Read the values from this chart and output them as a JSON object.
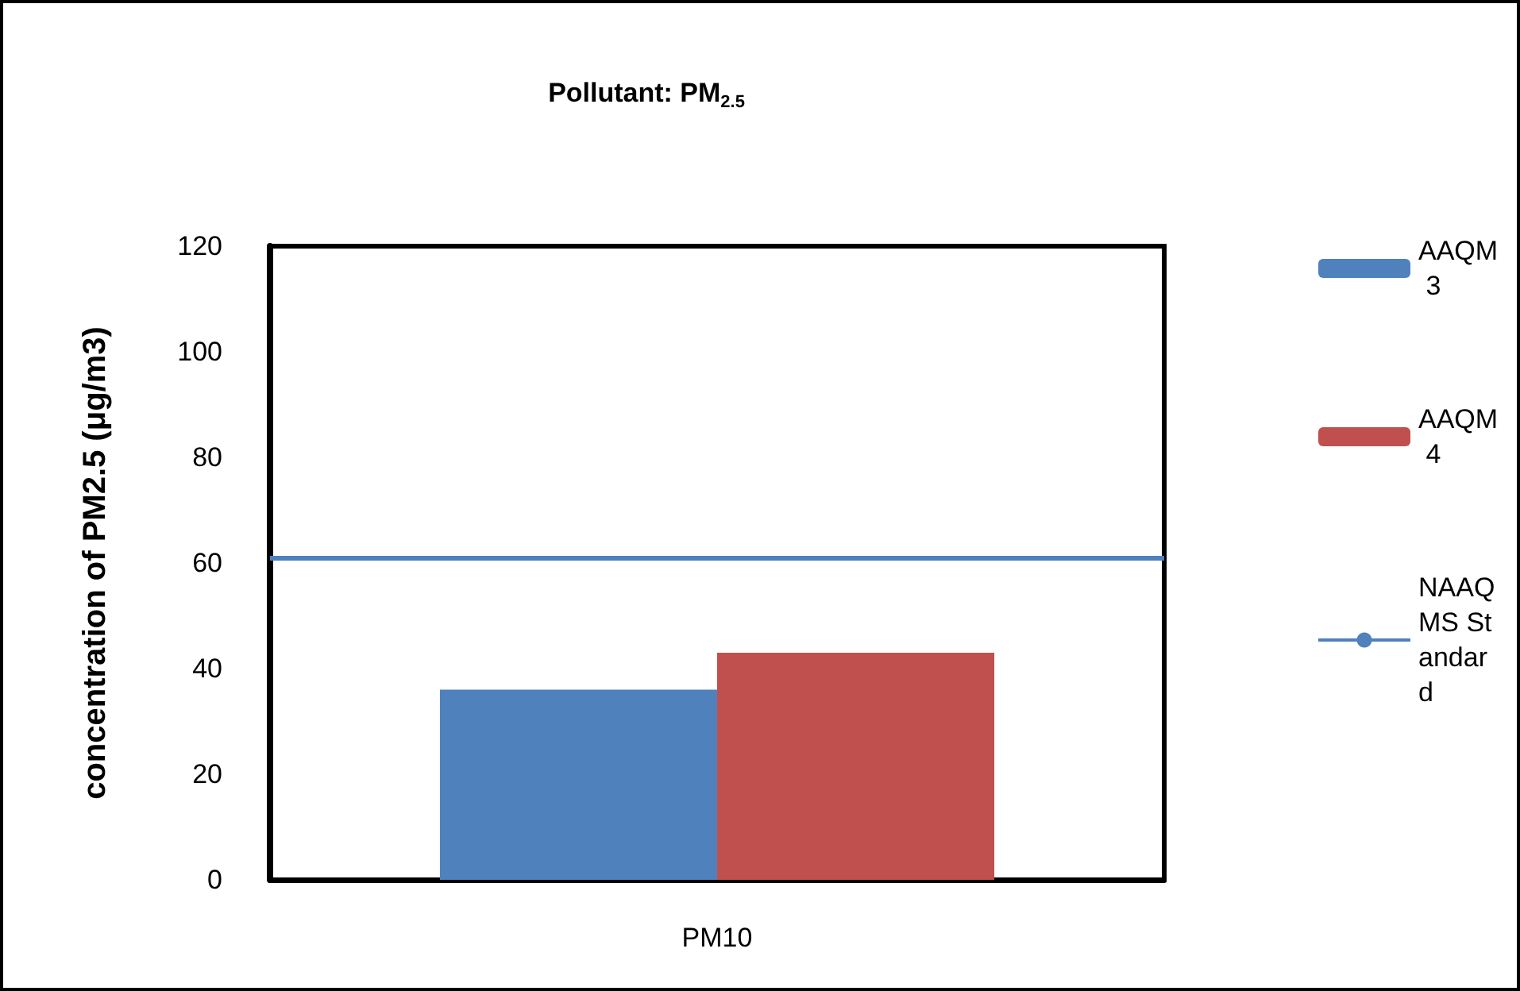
{
  "chart_data": {
    "type": "bar",
    "title": "Pollutant: PM$_{2.5}$",
    "ylabel": "concentration of PM2.5 (μg/m3)",
    "categories": [
      "PM10"
    ],
    "series": [
      {
        "name": "AAQM 3",
        "color": "#4f81bd",
        "values": [
          36
        ]
      },
      {
        "name": "AAQM 4",
        "color": "#c0504d",
        "values": [
          43
        ]
      }
    ],
    "ref_lines": [
      {
        "axis": "y",
        "value": 61,
        "label": "NAAQMS Standard",
        "color": "#4f81bd"
      }
    ],
    "ylim": [
      0,
      120
    ],
    "yticks": [
      0,
      20,
      40,
      60,
      80,
      100,
      120
    ],
    "grid": false,
    "legend": "right"
  }
}
